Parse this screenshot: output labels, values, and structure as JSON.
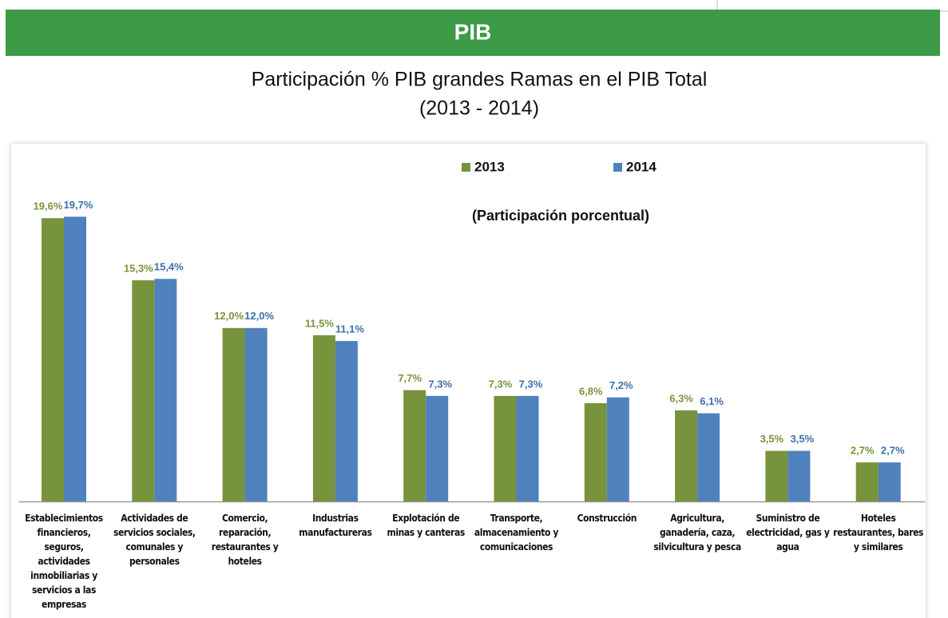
{
  "header": "PIB",
  "chart_data": {
    "type": "bar",
    "title": "Participación %  PIB grandes Ramas en el PIB Total",
    "subtitle": "(2013 - 2014)",
    "annotation": "(Participación porcentual)",
    "categories": [
      "Establecimientos financieros, seguros, actividades inmobiliarias y servicios a las empresas",
      "Actividades de servicios sociales, comunales y personales",
      "Comercio, reparación, restaurantes y hoteles",
      "Industrias manufactureras",
      "Explotación de minas y canteras",
      "Transporte, almacenamiento y comunicaciones",
      "Construcción",
      "Agricultura, ganadería, caza, silvicultura y pesca",
      "Suministro de electricidad, gas y agua",
      "Hoteles restaurantes, bares y similares"
    ],
    "series": [
      {
        "name": "2013",
        "color": "#77933c",
        "values": [
          19.6,
          15.3,
          12.0,
          11.5,
          7.7,
          7.3,
          6.8,
          6.3,
          3.5,
          2.7
        ],
        "value_labels": [
          "19,6%",
          "15,3%",
          "12,0%",
          "11,5%",
          "7,7%",
          "7,3%",
          "6,8%",
          "6,3%",
          "3,5%",
          "2,7%"
        ]
      },
      {
        "name": "2014",
        "color": "#4f81bd",
        "values": [
          19.7,
          15.4,
          12.0,
          11.1,
          7.3,
          7.3,
          7.2,
          6.1,
          3.5,
          2.7
        ],
        "value_labels": [
          "19,7%",
          "15,4%",
          "12,0%",
          "11,1%",
          "7,3%",
          "7,3%",
          "7,2%",
          "6,1%",
          "3,5%",
          "2,7%"
        ]
      }
    ]
  }
}
